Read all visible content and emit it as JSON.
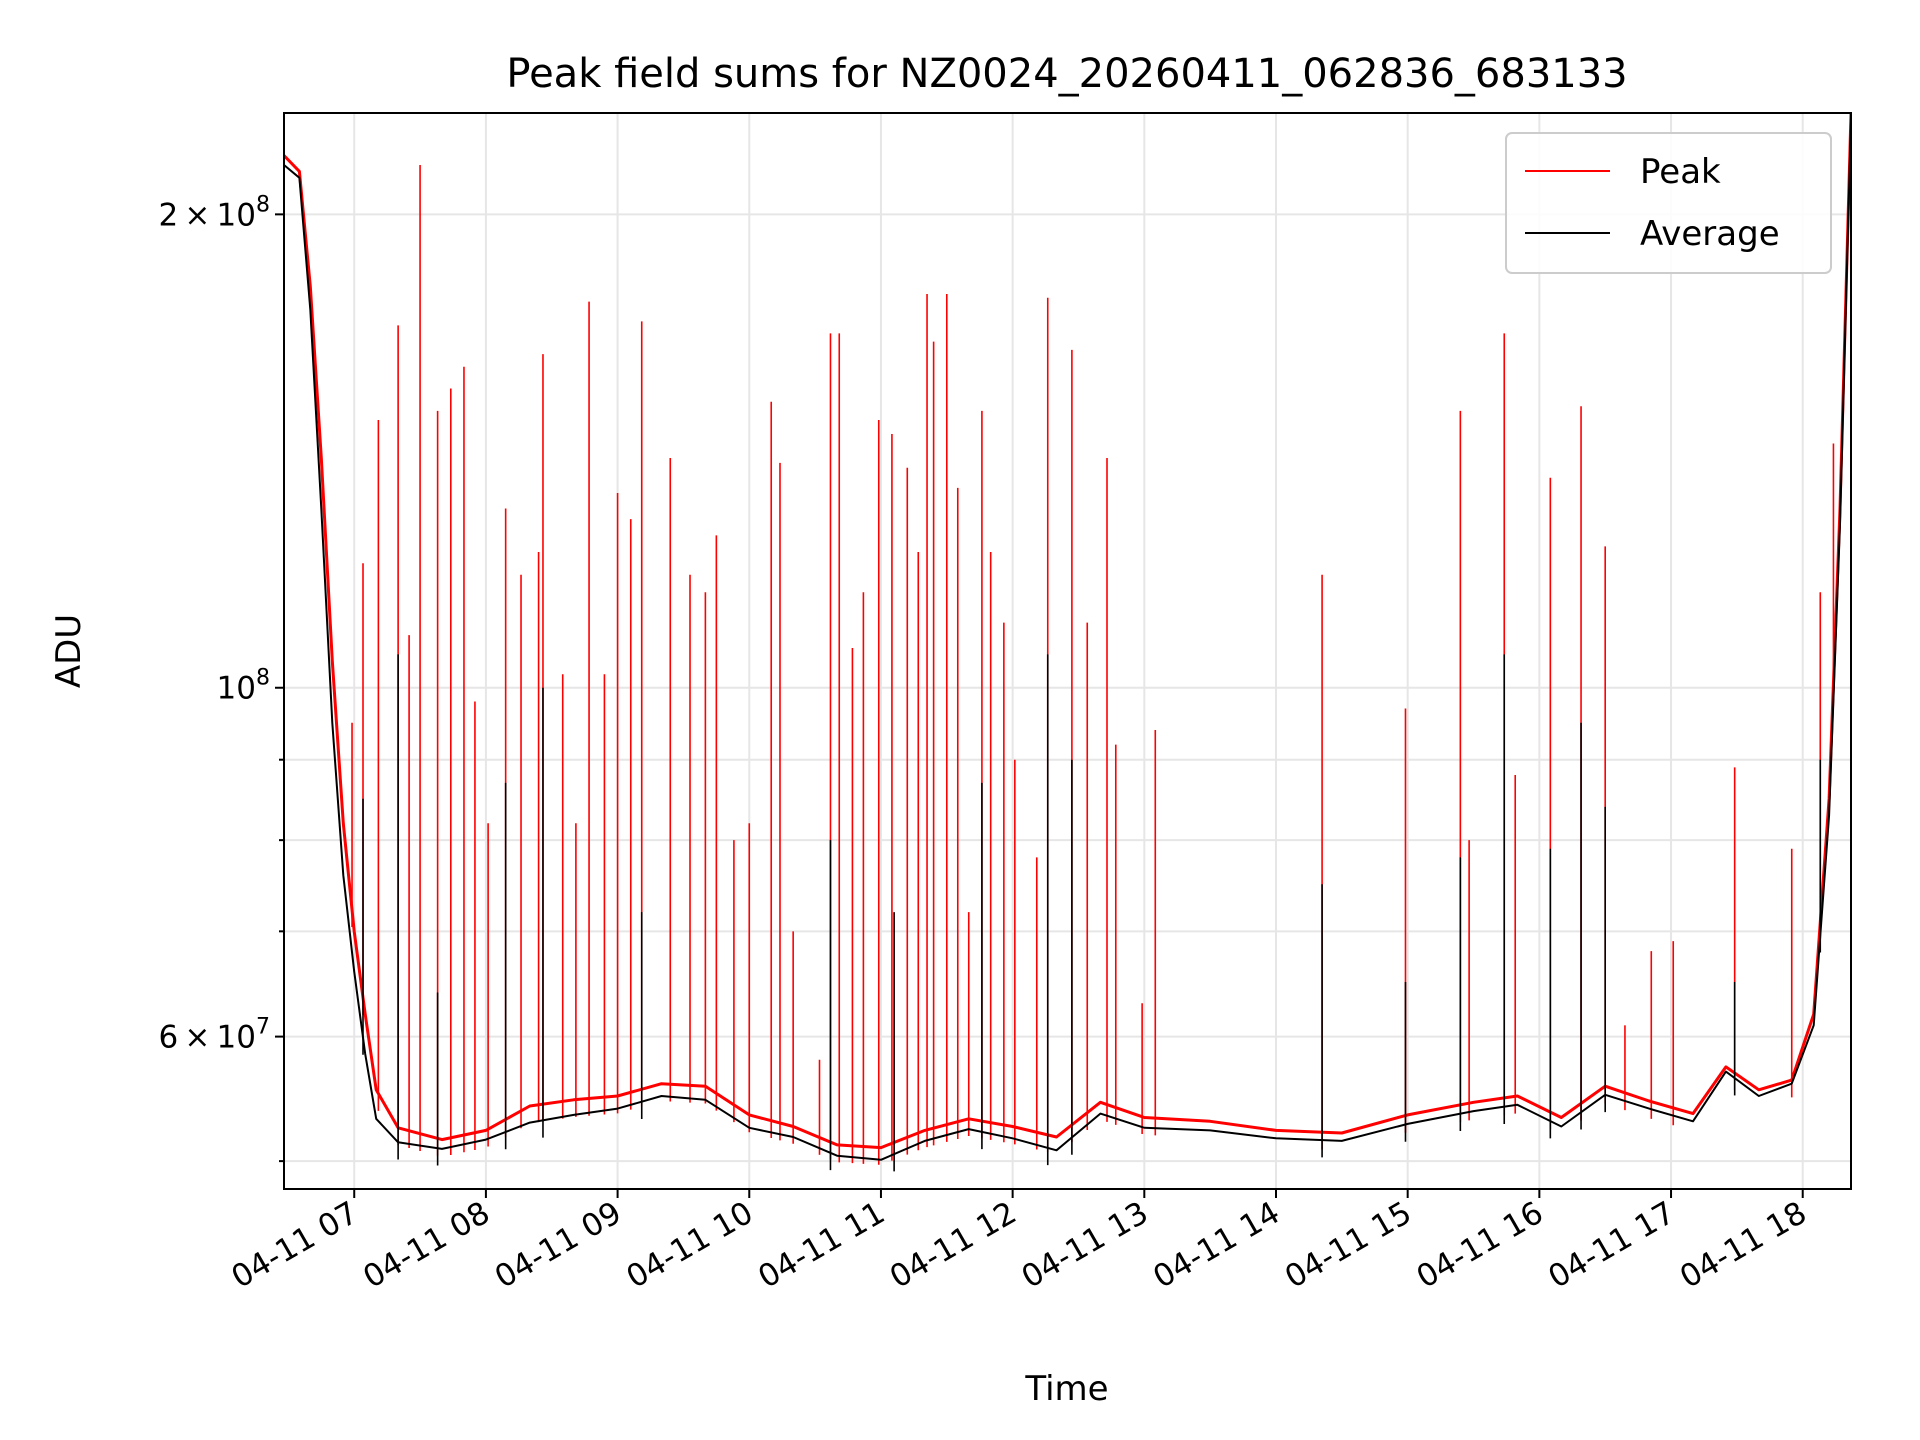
{
  "chart_data": {
    "type": "line",
    "title": "Peak field sums for NZ0024_20260411_062836_683133",
    "xlabel": "Time",
    "ylabel": "ADU",
    "yscale": "log",
    "ylim": [
      48000000,
      232000000
    ],
    "xlim": [
      "2026-04-11 06:28",
      "2026-04-11 18:22"
    ],
    "x_tick_labels": [
      "04-11 07",
      "04-11 08",
      "04-11 09",
      "04-11 10",
      "04-11 11",
      "04-11 12",
      "04-11 13",
      "04-11 14",
      "04-11 15",
      "04-11 16",
      "04-11 17",
      "04-11 18"
    ],
    "x_tick_times": [
      "2026-04-11 07:00",
      "2026-04-11 08:00",
      "2026-04-11 09:00",
      "2026-04-11 10:00",
      "2026-04-11 11:00",
      "2026-04-11 12:00",
      "2026-04-11 13:00",
      "2026-04-11 14:00",
      "2026-04-11 15:00",
      "2026-04-11 16:00",
      "2026-04-11 17:00",
      "2026-04-11 18:00"
    ],
    "y_major_ticks": [
      {
        "value": 200000000,
        "mantissa": "2",
        "exponent": "8"
      },
      {
        "value": 100000000,
        "mantissa": "",
        "exponent": "8"
      },
      {
        "value": 60000000,
        "mantissa": "6",
        "exponent": "7"
      }
    ],
    "y_minor_ticks": [
      50000000,
      70000000,
      80000000,
      90000000
    ],
    "grid": true,
    "legend": {
      "position": "top-right"
    },
    "series": [
      {
        "name": "Peak",
        "color": "#ff0000",
        "baseline": [
          [
            "2026-04-11 06:28",
            218000000
          ],
          [
            "2026-04-11 06:35",
            213000000
          ],
          [
            "2026-04-11 06:40",
            180000000
          ],
          [
            "2026-04-11 06:45",
            140000000
          ],
          [
            "2026-04-11 06:50",
            104000000
          ],
          [
            "2026-04-11 06:55",
            82000000
          ],
          [
            "2026-04-11 07:00",
            70000000
          ],
          [
            "2026-04-11 07:05",
            62000000
          ],
          [
            "2026-04-11 07:10",
            55500000
          ],
          [
            "2026-04-11 07:20",
            52500000
          ],
          [
            "2026-04-11 07:40",
            51600000
          ],
          [
            "2026-04-11 08:00",
            52300000
          ],
          [
            "2026-04-11 08:20",
            54200000
          ],
          [
            "2026-04-11 08:40",
            54700000
          ],
          [
            "2026-04-11 09:00",
            55000000
          ],
          [
            "2026-04-11 09:20",
            56000000
          ],
          [
            "2026-04-11 09:40",
            55800000
          ],
          [
            "2026-04-11 10:00",
            53500000
          ],
          [
            "2026-04-11 10:20",
            52600000
          ],
          [
            "2026-04-11 10:40",
            51200000
          ],
          [
            "2026-04-11 11:00",
            51000000
          ],
          [
            "2026-04-11 11:20",
            52300000
          ],
          [
            "2026-04-11 11:40",
            53200000
          ],
          [
            "2026-04-11 12:00",
            52600000
          ],
          [
            "2026-04-11 12:20",
            51800000
          ],
          [
            "2026-04-11 12:40",
            54500000
          ],
          [
            "2026-04-11 13:00",
            53300000
          ],
          [
            "2026-04-11 13:30",
            53000000
          ],
          [
            "2026-04-11 14:00",
            52300000
          ],
          [
            "2026-04-11 14:30",
            52100000
          ],
          [
            "2026-04-11 15:00",
            53500000
          ],
          [
            "2026-04-11 15:30",
            54500000
          ],
          [
            "2026-04-11 15:50",
            55000000
          ],
          [
            "2026-04-11 16:10",
            53300000
          ],
          [
            "2026-04-11 16:30",
            55800000
          ],
          [
            "2026-04-11 16:50",
            54600000
          ],
          [
            "2026-04-11 17:10",
            53600000
          ],
          [
            "2026-04-11 17:25",
            57400000
          ],
          [
            "2026-04-11 17:40",
            55500000
          ],
          [
            "2026-04-11 17:55",
            56300000
          ],
          [
            "2026-04-11 18:05",
            62000000
          ],
          [
            "2026-04-11 18:12",
            85000000
          ],
          [
            "2026-04-11 18:17",
            130000000
          ],
          [
            "2026-04-11 18:22",
            232000000
          ]
        ],
        "spikes": [
          [
            "2026-04-11 06:59",
            95000000
          ],
          [
            "2026-04-11 07:04",
            120000000
          ],
          [
            "2026-04-11 07:11",
            148000000
          ],
          [
            "2026-04-11 07:20",
            170000000
          ],
          [
            "2026-04-11 07:25",
            108000000
          ],
          [
            "2026-04-11 07:30",
            215000000
          ],
          [
            "2026-04-11 07:38",
            150000000
          ],
          [
            "2026-04-11 07:44",
            155000000
          ],
          [
            "2026-04-11 07:50",
            160000000
          ],
          [
            "2026-04-11 07:55",
            98000000
          ],
          [
            "2026-04-11 08:01",
            82000000
          ],
          [
            "2026-04-11 08:09",
            130000000
          ],
          [
            "2026-04-11 08:16",
            118000000
          ],
          [
            "2026-04-11 08:24",
            122000000
          ],
          [
            "2026-04-11 08:26",
            163000000
          ],
          [
            "2026-04-11 08:35",
            102000000
          ],
          [
            "2026-04-11 08:41",
            82000000
          ],
          [
            "2026-04-11 08:47",
            176000000
          ],
          [
            "2026-04-11 08:54",
            102000000
          ],
          [
            "2026-04-11 09:00",
            133000000
          ],
          [
            "2026-04-11 09:06",
            128000000
          ],
          [
            "2026-04-11 09:11",
            171000000
          ],
          [
            "2026-04-11 09:24",
            140000000
          ],
          [
            "2026-04-11 09:33",
            118000000
          ],
          [
            "2026-04-11 09:40",
            115000000
          ],
          [
            "2026-04-11 09:45",
            125000000
          ],
          [
            "2026-04-11 09:53",
            80000000
          ],
          [
            "2026-04-11 10:00",
            82000000
          ],
          [
            "2026-04-11 10:10",
            152000000
          ],
          [
            "2026-04-11 10:14",
            139000000
          ],
          [
            "2026-04-11 10:20",
            70000000
          ],
          [
            "2026-04-11 10:32",
            58000000
          ],
          [
            "2026-04-11 10:37",
            168000000
          ],
          [
            "2026-04-11 10:41",
            168000000
          ],
          [
            "2026-04-11 10:47",
            106000000
          ],
          [
            "2026-04-11 10:52",
            115000000
          ],
          [
            "2026-04-11 10:59",
            148000000
          ],
          [
            "2026-04-11 11:05",
            145000000
          ],
          [
            "2026-04-11 11:12",
            138000000
          ],
          [
            "2026-04-11 11:17",
            122000000
          ],
          [
            "2026-04-11 11:21",
            178000000
          ],
          [
            "2026-04-11 11:24",
            166000000
          ],
          [
            "2026-04-11 11:30",
            178000000
          ],
          [
            "2026-04-11 11:35",
            134000000
          ],
          [
            "2026-04-11 11:40",
            72000000
          ],
          [
            "2026-04-11 11:46",
            150000000
          ],
          [
            "2026-04-11 11:50",
            122000000
          ],
          [
            "2026-04-11 11:56",
            110000000
          ],
          [
            "2026-04-11 12:01",
            90000000
          ],
          [
            "2026-04-11 12:11",
            78000000
          ],
          [
            "2026-04-11 12:16",
            177000000
          ],
          [
            "2026-04-11 12:27",
            164000000
          ],
          [
            "2026-04-11 12:34",
            110000000
          ],
          [
            "2026-04-11 12:43",
            140000000
          ],
          [
            "2026-04-11 12:47",
            92000000
          ],
          [
            "2026-04-11 12:59",
            63000000
          ],
          [
            "2026-04-11 13:05",
            94000000
          ],
          [
            "2026-04-11 14:21",
            118000000
          ],
          [
            "2026-04-11 14:59",
            97000000
          ],
          [
            "2026-04-11 15:24",
            150000000
          ],
          [
            "2026-04-11 15:28",
            80000000
          ],
          [
            "2026-04-11 15:44",
            168000000
          ],
          [
            "2026-04-11 15:49",
            88000000
          ],
          [
            "2026-04-11 16:05",
            136000000
          ],
          [
            "2026-04-11 16:19",
            151000000
          ],
          [
            "2026-04-11 16:30",
            123000000
          ],
          [
            "2026-04-11 16:39",
            61000000
          ],
          [
            "2026-04-11 16:51",
            68000000
          ],
          [
            "2026-04-11 17:01",
            69000000
          ],
          [
            "2026-04-11 17:29",
            89000000
          ],
          [
            "2026-04-11 17:55",
            79000000
          ],
          [
            "2026-04-11 18:08",
            115000000
          ],
          [
            "2026-04-11 18:14",
            143000000
          ]
        ]
      },
      {
        "name": "Average",
        "color": "#000000",
        "baseline": [
          [
            "2026-04-11 06:28",
            215000000
          ],
          [
            "2026-04-11 06:35",
            211000000
          ],
          [
            "2026-04-11 06:40",
            174000000
          ],
          [
            "2026-04-11 06:45",
            130000000
          ],
          [
            "2026-04-11 06:50",
            95000000
          ],
          [
            "2026-04-11 06:55",
            76000000
          ],
          [
            "2026-04-11 07:00",
            66000000
          ],
          [
            "2026-04-11 07:05",
            58500000
          ],
          [
            "2026-04-11 07:10",
            53200000
          ],
          [
            "2026-04-11 07:20",
            51400000
          ],
          [
            "2026-04-11 07:40",
            50900000
          ],
          [
            "2026-04-11 08:00",
            51600000
          ],
          [
            "2026-04-11 08:20",
            52900000
          ],
          [
            "2026-04-11 08:40",
            53500000
          ],
          [
            "2026-04-11 09:00",
            54000000
          ],
          [
            "2026-04-11 09:20",
            55000000
          ],
          [
            "2026-04-11 09:40",
            54700000
          ],
          [
            "2026-04-11 10:00",
            52500000
          ],
          [
            "2026-04-11 10:20",
            51800000
          ],
          [
            "2026-04-11 10:40",
            50400000
          ],
          [
            "2026-04-11 11:00",
            50100000
          ],
          [
            "2026-04-11 11:20",
            51500000
          ],
          [
            "2026-04-11 11:40",
            52400000
          ],
          [
            "2026-04-11 12:00",
            51700000
          ],
          [
            "2026-04-11 12:20",
            50800000
          ],
          [
            "2026-04-11 12:40",
            53600000
          ],
          [
            "2026-04-11 13:00",
            52500000
          ],
          [
            "2026-04-11 13:30",
            52300000
          ],
          [
            "2026-04-11 14:00",
            51700000
          ],
          [
            "2026-04-11 14:30",
            51500000
          ],
          [
            "2026-04-11 15:00",
            52800000
          ],
          [
            "2026-04-11 15:30",
            53800000
          ],
          [
            "2026-04-11 15:50",
            54300000
          ],
          [
            "2026-04-11 16:10",
            52600000
          ],
          [
            "2026-04-11 16:30",
            55100000
          ],
          [
            "2026-04-11 16:50",
            54000000
          ],
          [
            "2026-04-11 17:10",
            53000000
          ],
          [
            "2026-04-11 17:25",
            57000000
          ],
          [
            "2026-04-11 17:40",
            55000000
          ],
          [
            "2026-04-11 17:55",
            56000000
          ],
          [
            "2026-04-11 18:05",
            61000000
          ],
          [
            "2026-04-11 18:12",
            83000000
          ],
          [
            "2026-04-11 18:17",
            127000000
          ],
          [
            "2026-04-11 18:22",
            230000000
          ]
        ],
        "spikes": [
          [
            "2026-04-11 07:04",
            85000000
          ],
          [
            "2026-04-11 07:20",
            105000000
          ],
          [
            "2026-04-11 07:38",
            64000000
          ],
          [
            "2026-04-11 08:09",
            87000000
          ],
          [
            "2026-04-11 08:26",
            100000000
          ],
          [
            "2026-04-11 09:11",
            72000000
          ],
          [
            "2026-04-11 10:37",
            80000000
          ],
          [
            "2026-04-11 11:06",
            72000000
          ],
          [
            "2026-04-11 11:46",
            87000000
          ],
          [
            "2026-04-11 12:16",
            105000000
          ],
          [
            "2026-04-11 12:27",
            90000000
          ],
          [
            "2026-04-11 14:21",
            75000000
          ],
          [
            "2026-04-11 14:59",
            65000000
          ],
          [
            "2026-04-11 15:24",
            78000000
          ],
          [
            "2026-04-11 15:44",
            105000000
          ],
          [
            "2026-04-11 16:05",
            79000000
          ],
          [
            "2026-04-11 16:19",
            95000000
          ],
          [
            "2026-04-11 16:30",
            84000000
          ],
          [
            "2026-04-11 17:29",
            65000000
          ],
          [
            "2026-04-11 18:08",
            90000000
          ]
        ]
      }
    ]
  }
}
